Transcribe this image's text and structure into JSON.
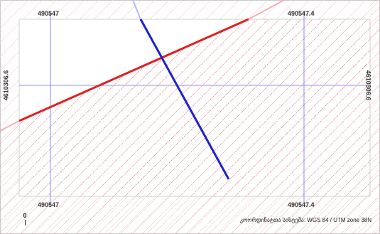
{
  "grid": {
    "x_top_left": "490547",
    "x_top_right": "490547.4",
    "x_bottom_left": "490547",
    "x_bottom_right": "490547.4",
    "y_left": "4610306.6",
    "y_right": "4610306.6"
  },
  "crs": {
    "label": "კოორდინატთა სისტემა:",
    "value": "WGS 84 / UTM zone 38N"
  },
  "north": {
    "symbol": "0"
  },
  "colors": {
    "parcel_hatch": "#e06060",
    "parcel_boundary": "#e02020",
    "line_feature": "#1e22c8",
    "grid_line": "#6b6bff",
    "background_hatch": "#f0d0d0"
  },
  "icons": {
    "north_arrow": "north-arrow-icon"
  }
}
